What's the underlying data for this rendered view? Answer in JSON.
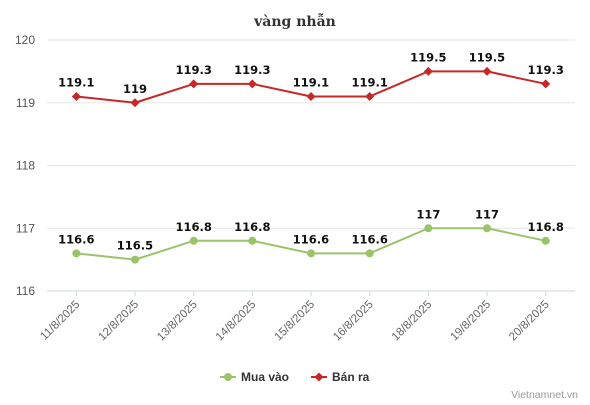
{
  "chart_data": {
    "type": "line",
    "title": "vàng nhẫn",
    "categories": [
      "11/8/2025",
      "12/8/2025",
      "13/8/2025",
      "14/8/2025",
      "15/8/2025",
      "16/8/2025",
      "18/8/2025",
      "19/8/2025",
      "20/8/2025"
    ],
    "y_ticks": [
      "116",
      "117",
      "118",
      "119",
      "120"
    ],
    "ylim": [
      116,
      120
    ],
    "grid": "horizontal",
    "legend_position": "bottom",
    "series": [
      {
        "name": "Mua vào",
        "color": "#9bc46a",
        "values": [
          116.6,
          116.5,
          116.8,
          116.8,
          116.6,
          116.6,
          117,
          117,
          116.8
        ],
        "labels": [
          "116.6",
          "116.5",
          "116.8",
          "116.8",
          "116.6",
          "116.6",
          "117",
          "117",
          "116.8"
        ]
      },
      {
        "name": "Bán ra",
        "color": "#c62828",
        "values": [
          119.1,
          119,
          119.3,
          119.3,
          119.1,
          119.1,
          119.5,
          119.5,
          119.3
        ],
        "labels": [
          "119.1",
          "119",
          "119.3",
          "119.3",
          "119.1",
          "119.1",
          "119.5",
          "119.5",
          "119.3"
        ]
      }
    ],
    "source_credit": "Vietnamnet.vn"
  }
}
